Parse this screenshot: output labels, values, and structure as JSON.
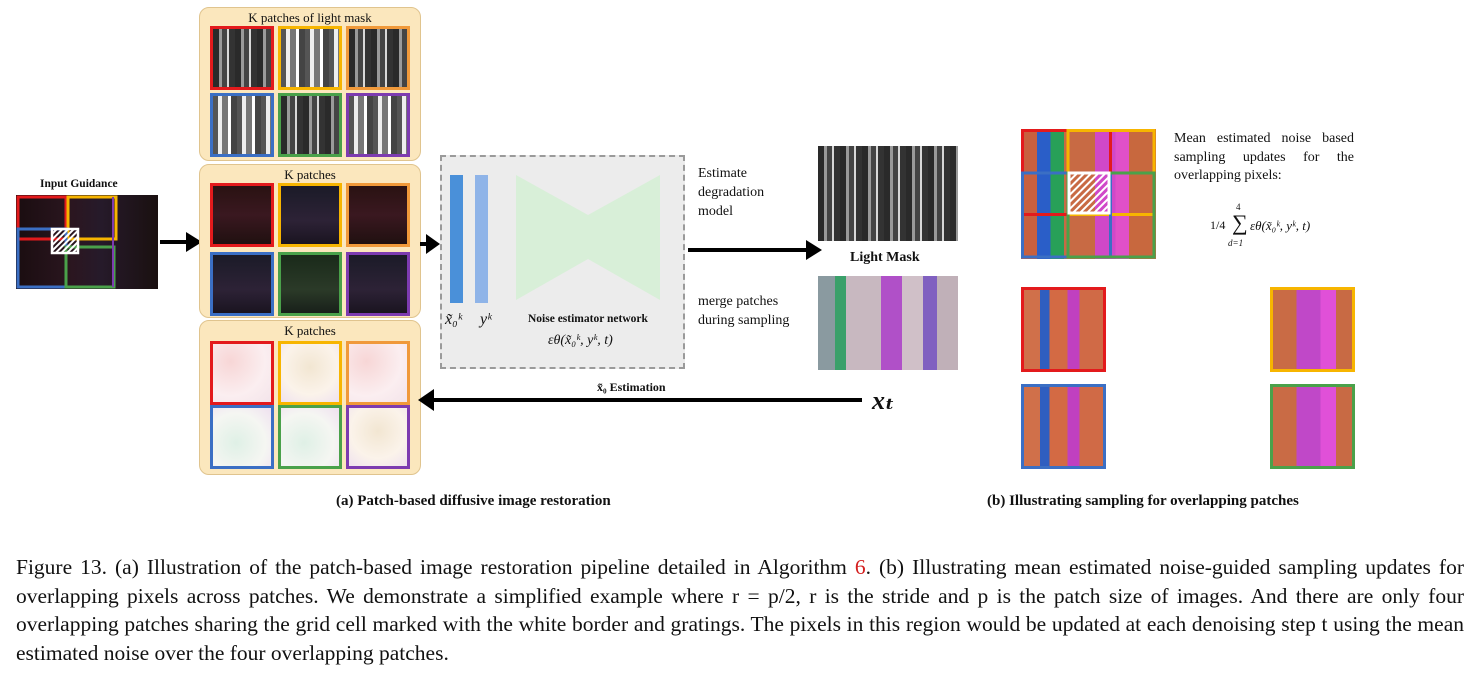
{
  "figure": {
    "input_guidance_label": "Input Guidance",
    "panel_light_title": "K patches of light mask",
    "panel_dark_title": "K patches",
    "panel_light_patches_title": "K patches",
    "network": {
      "x0_label": "x̃₀ᵏ",
      "y_label": "yᵏ",
      "name": "Noise estimator network",
      "formula": "εθ(x̃₀ᵏ, yᵏ, t)"
    },
    "estimate_label": "Estimate degradation model",
    "merge_label": "merge patches during sampling",
    "light_mask_label": "Light Mask",
    "x0_estimation_label": "x̃₀ Estimation",
    "xt_label": "xₜ",
    "mean_text": "Mean estimated noise based sampling updates for the overlapping pixels:",
    "mean_formula_frac": "1/4",
    "mean_formula_sum_top": "4",
    "mean_formula_sum_bottom": "d=1",
    "mean_formula_term": "εθ(x̃₀ᵏ, yᵏ, t)",
    "subcaption_a": "(a) Patch-based diffusive image restoration",
    "subcaption_b": "(b) Illustrating sampling for overlapping patches"
  },
  "caption": {
    "prefix": "Figure 13. (a) Illustration of the patch-based image restoration pipeline detailed in Algorithm ",
    "ref": "6",
    "body": ". (b) Illustrating mean estimated noise-guided sampling updates for overlapping pixels across patches. We demonstrate a simplified example where r = p/2, r is the stride and p is the patch size of images. And there are only four overlapping patches sharing the grid cell marked with the white border and gratings. The pixels in this region would be updated at each denoising step t using the mean estimated noise over the four overlapping patches."
  },
  "colors": {
    "red": "#e31a1c",
    "yellow": "#f7b500",
    "orange": "#f0993a",
    "blue": "#3b6fc4",
    "green": "#4aa14a",
    "purple": "#7d3bb0",
    "panel": "#fbe7bd",
    "network_bar_dark": "#4a90d9",
    "network_bar_light": "#8fb4e8",
    "network_funnel": "#d8efd8"
  }
}
